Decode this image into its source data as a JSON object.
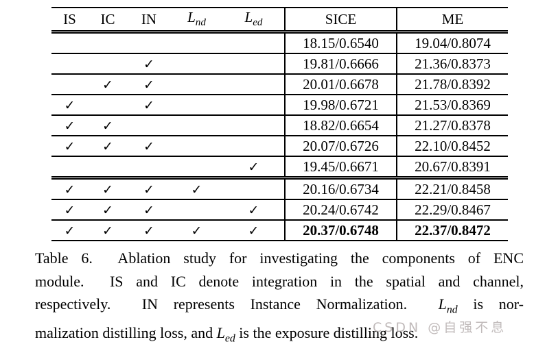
{
  "table": {
    "columns": [
      "IS",
      "IC",
      "IN",
      "$L_{nd}$",
      "$L_{ed}$",
      "SICE",
      "ME"
    ],
    "check_mark": "✓",
    "rows": [
      {
        "checks": [
          false,
          false,
          false,
          false,
          false
        ],
        "sice": "18.15/0.6540",
        "me": "19.04/0.8074",
        "bold": false,
        "group_sep": false
      },
      {
        "checks": [
          false,
          false,
          true,
          false,
          false
        ],
        "sice": "19.81/0.6666",
        "me": "21.36/0.8373",
        "bold": false,
        "group_sep": false
      },
      {
        "checks": [
          false,
          true,
          true,
          false,
          false
        ],
        "sice": "20.01/0.6678",
        "me": "21.78/0.8392",
        "bold": false,
        "group_sep": false
      },
      {
        "checks": [
          true,
          false,
          true,
          false,
          false
        ],
        "sice": "19.98/0.6721",
        "me": "21.53/0.8369",
        "bold": false,
        "group_sep": false
      },
      {
        "checks": [
          true,
          true,
          false,
          false,
          false
        ],
        "sice": "18.82/0.6654",
        "me": "21.27/0.8378",
        "bold": false,
        "group_sep": false
      },
      {
        "checks": [
          true,
          true,
          true,
          false,
          false
        ],
        "sice": "20.07/0.6726",
        "me": "22.10/0.8452",
        "bold": false,
        "group_sep": false
      },
      {
        "checks": [
          false,
          false,
          false,
          false,
          true
        ],
        "sice": "19.45/0.6671",
        "me": "20.67/0.8391",
        "bold": false,
        "group_sep": false
      },
      {
        "checks": [
          true,
          true,
          true,
          true,
          false
        ],
        "sice": "20.16/0.6734",
        "me": "22.21/0.8458",
        "bold": false,
        "group_sep": true
      },
      {
        "checks": [
          true,
          true,
          true,
          false,
          true
        ],
        "sice": "20.24/0.6742",
        "me": "22.29/0.8467",
        "bold": false,
        "group_sep": false
      },
      {
        "checks": [
          true,
          true,
          true,
          true,
          true
        ],
        "sice": "20.37/0.6748",
        "me": "22.37/0.8472",
        "bold": true,
        "group_sep": false
      }
    ]
  },
  "caption": {
    "lines": [
      "Table 6.  Ablation study for investigating the components of ENC",
      "module.  IS and IC denote integration in the spatial and channel,",
      "respectively.  IN represents Instance Normalization.  $L_{nd}$ is nor-",
      "malization distilling loss, and $L_{ed}$ is the exposure distilling loss."
    ]
  },
  "watermark": {
    "text": "CSDN @自强不息",
    "color": "#b2aaaa"
  }
}
